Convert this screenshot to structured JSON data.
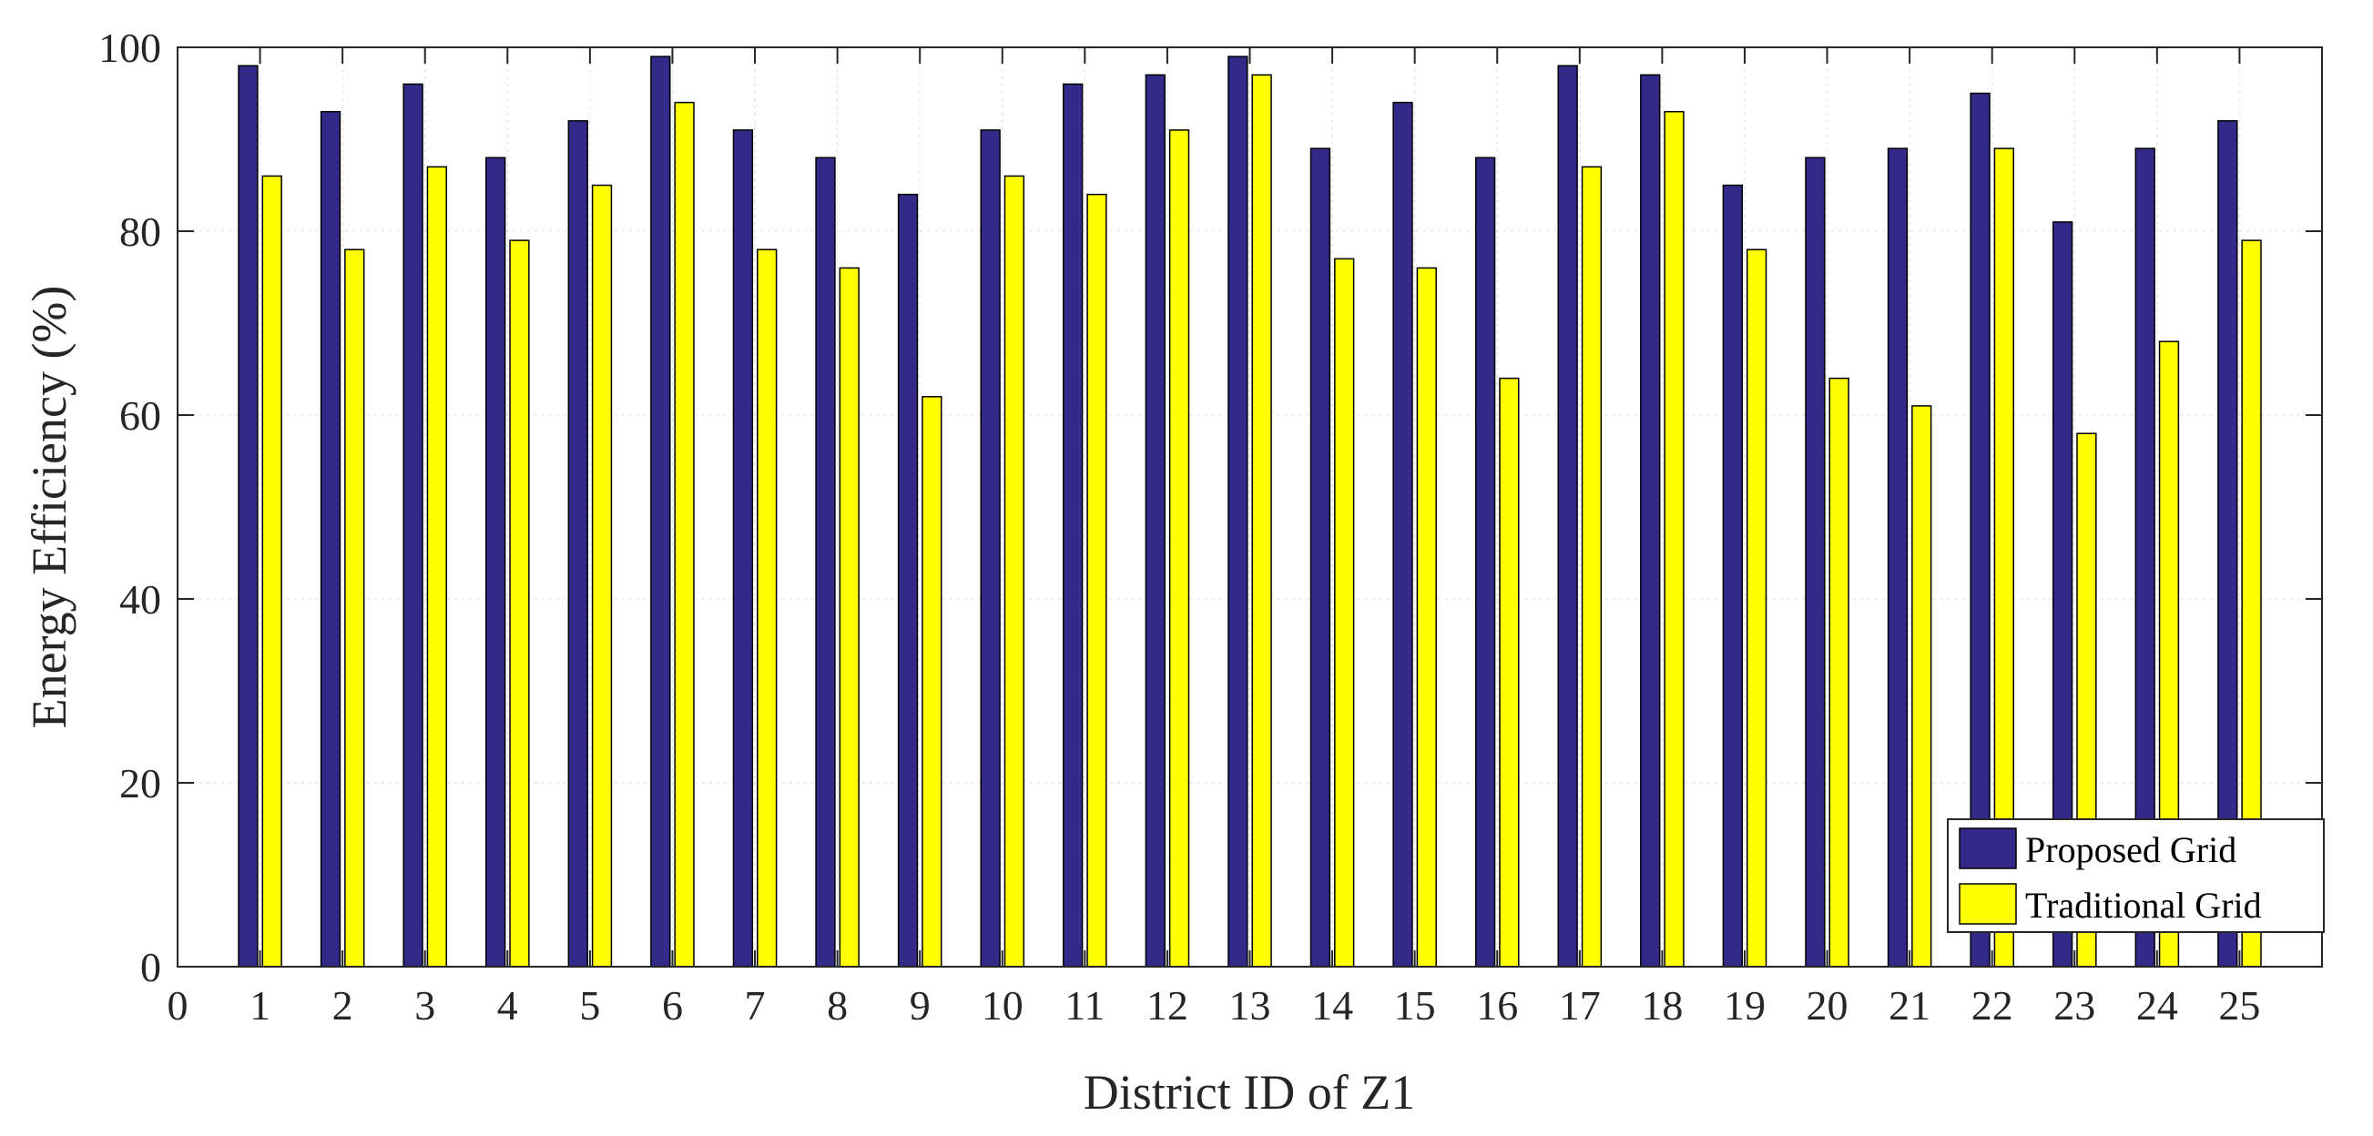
{
  "chart_data": {
    "type": "bar",
    "title": "",
    "xlabel": "District ID of Z1",
    "ylabel": "Energy Efficiency (%)",
    "xlim": [
      0,
      26
    ],
    "ylim": [
      0,
      100
    ],
    "xticks": [
      "0",
      "1",
      "2",
      "3",
      "4",
      "5",
      "6",
      "7",
      "8",
      "9",
      "10",
      "11",
      "12",
      "13",
      "14",
      "15",
      "16",
      "17",
      "18",
      "19",
      "20",
      "21",
      "22",
      "23",
      "24",
      "25"
    ],
    "yticks": [
      "0",
      "20",
      "40",
      "60",
      "80",
      "100"
    ],
    "categories": [
      1,
      2,
      3,
      4,
      5,
      6,
      7,
      8,
      9,
      10,
      11,
      12,
      13,
      14,
      15,
      16,
      17,
      18,
      19,
      20,
      21,
      22,
      23,
      24,
      25
    ],
    "series": [
      {
        "name": "Proposed Grid",
        "color": "#332988",
        "values": [
          98,
          93,
          96,
          88,
          92,
          99,
          91,
          88,
          84,
          91,
          96,
          97,
          99,
          89,
          94,
          88,
          98,
          97,
          85,
          88,
          89,
          95,
          81,
          89,
          92
        ]
      },
      {
        "name": "Traditional Grid",
        "color": "#ffff00",
        "values": [
          86,
          78,
          87,
          79,
          85,
          94,
          78,
          76,
          62,
          86,
          84,
          91,
          97,
          77,
          76,
          64,
          87,
          93,
          78,
          64,
          61,
          89,
          58,
          68,
          79
        ]
      }
    ],
    "grid": true,
    "legend": "bottom-right"
  }
}
